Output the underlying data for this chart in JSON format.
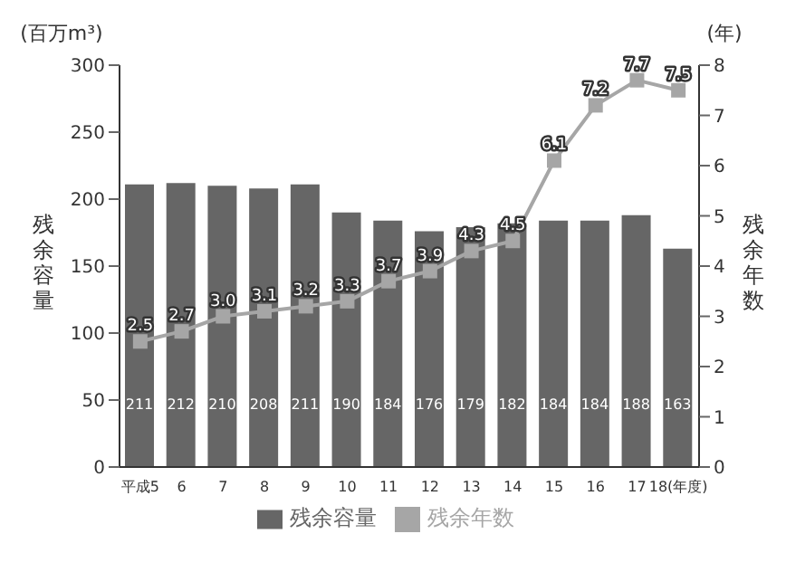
{
  "chart_data": {
    "type": "bar",
    "categories": [
      "平成5",
      "6",
      "7",
      "8",
      "9",
      "10",
      "11",
      "12",
      "13",
      "14",
      "15",
      "16",
      "17",
      "18(年度)"
    ],
    "series": [
      {
        "name": "残余容量",
        "color": "#666666",
        "values": [
          211,
          212,
          210,
          208,
          211,
          190,
          184,
          176,
          179,
          182,
          184,
          184,
          188,
          163
        ]
      },
      {
        "name": "残余年数",
        "type": "line",
        "axis": "y2",
        "color": "#a6a6a6",
        "marker": "square",
        "values": [
          2.5,
          2.7,
          3.0,
          3.1,
          3.2,
          3.3,
          3.7,
          3.9,
          4.3,
          4.5,
          6.1,
          7.2,
          7.7,
          7.5
        ],
        "value_labels": [
          "2.5",
          "2.7",
          "3.0",
          "3.1",
          "3.2",
          "3.3",
          "3.7",
          "3.9",
          "4.3",
          "4.5",
          "6.1",
          "7.2",
          "7.7",
          "7.5"
        ]
      }
    ],
    "ylabel": "残余容量",
    "y2label": "残余年数",
    "annotations": [
      "(百万m³)",
      "(年)"
    ],
    "ylim": [
      0,
      300
    ],
    "yticks": [
      0,
      50,
      100,
      150,
      200,
      250,
      300
    ],
    "y2lim": [
      0,
      8
    ],
    "y2ticks": [
      0,
      1,
      2,
      3,
      4,
      5,
      6,
      7,
      8
    ],
    "data_labels": true,
    "legend": "bottom",
    "grid": false
  }
}
